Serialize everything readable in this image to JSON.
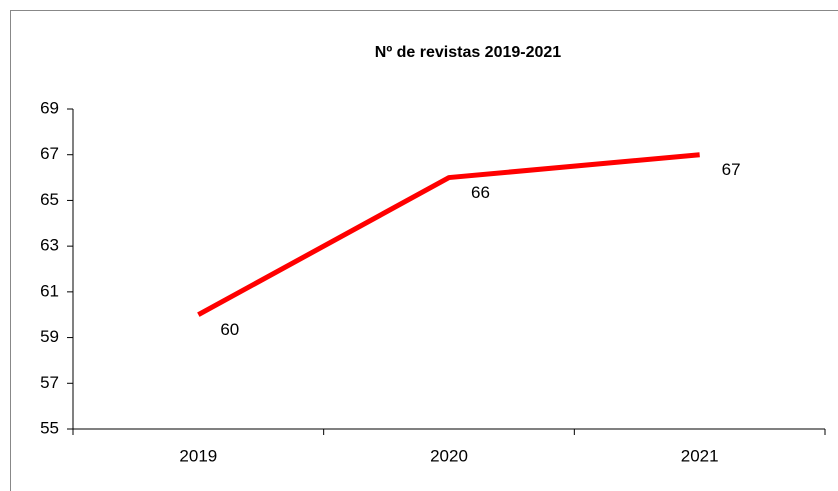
{
  "chart_data": {
    "type": "line",
    "title": "Nº de revistas 2019-2021",
    "categories": [
      "2019",
      "2020",
      "2021"
    ],
    "values": [
      60,
      66,
      67
    ],
    "color": "#ff0000",
    "ylim": [
      55,
      69
    ],
    "yticks": [
      55,
      57,
      59,
      61,
      63,
      65,
      67,
      69
    ],
    "grid": false
  }
}
